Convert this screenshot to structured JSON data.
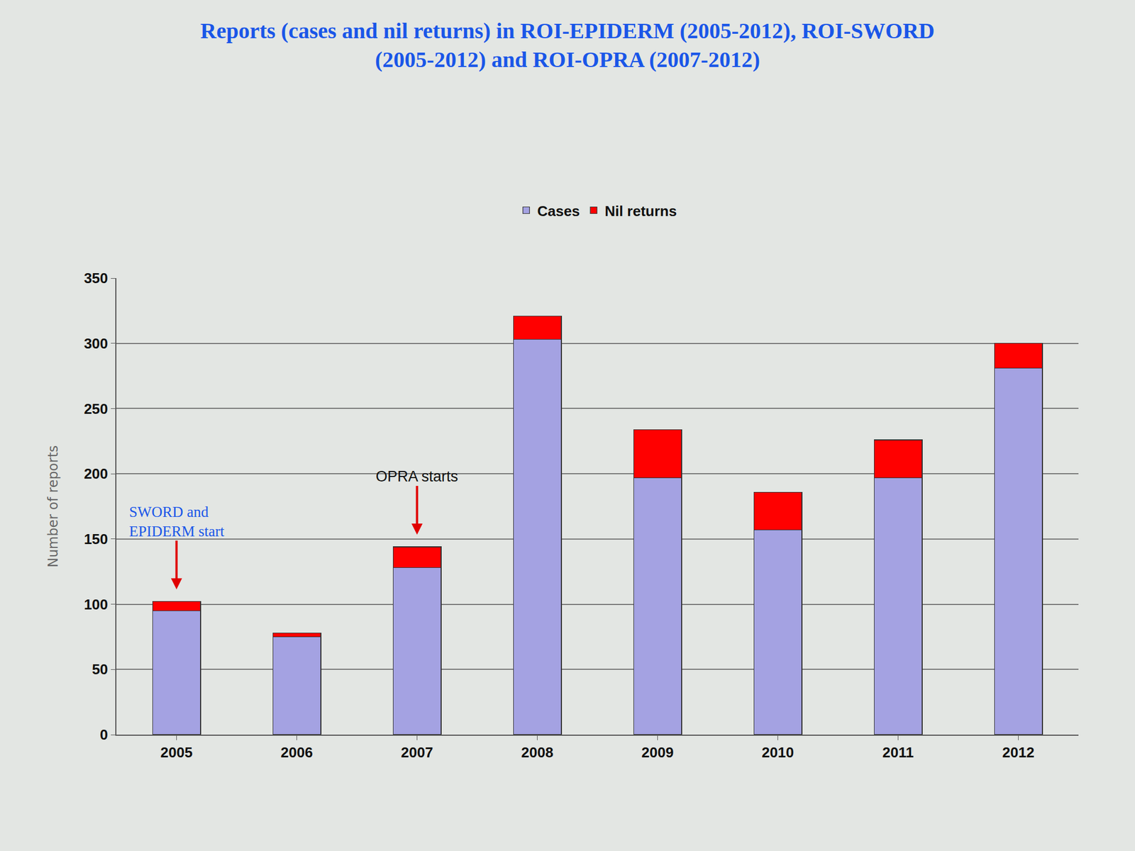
{
  "chart_data": {
    "type": "bar",
    "title": "Reports (cases and nil returns) in ROI-EPIDERM (2005-2012), ROI-SWORD (2005-2012) and ROI-OPRA (2007-2012)",
    "y_label": "Number of reports",
    "categories": [
      "2005",
      "2006",
      "2007",
      "2008",
      "2009",
      "2010",
      "2011",
      "2012"
    ],
    "series": [
      {
        "name": "Cases",
        "color": "#a4a2e2",
        "values": [
          95,
          75,
          128,
          303,
          197,
          157,
          197,
          281
        ]
      },
      {
        "name": "Nil returns",
        "color": "#ff0000",
        "values": [
          7,
          3,
          16,
          18,
          37,
          29,
          29,
          19
        ]
      }
    ],
    "stacked": true,
    "ylim": [
      0,
      350
    ],
    "yticks": [
      0,
      50,
      100,
      150,
      200,
      250,
      300,
      350
    ],
    "grid": true,
    "legend": "top",
    "annotations": [
      {
        "text": "SWORD and EPIDERM start",
        "category": "2005",
        "color": "#1a56e8"
      },
      {
        "text": "OPRA starts",
        "category": "2007",
        "color": "#111111"
      }
    ]
  }
}
